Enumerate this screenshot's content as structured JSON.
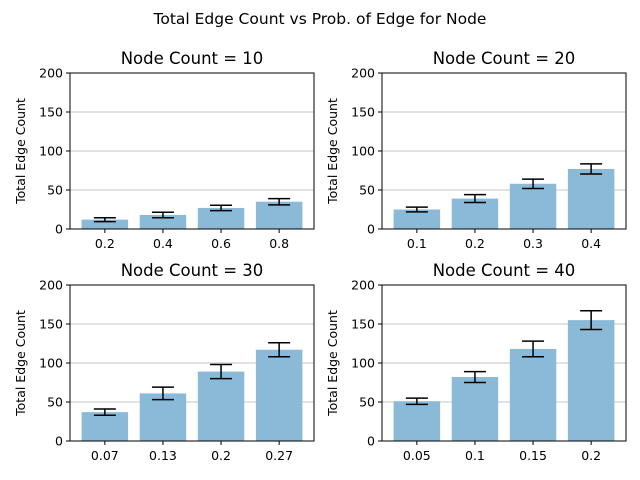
{
  "figure_title": "Total Edge Count vs Prob. of Edge for Node",
  "colors": {
    "bar": "#8bbad9",
    "error": "#000000",
    "grid": "#b0b0b0"
  },
  "chart_data": [
    {
      "type": "bar",
      "title": "Node Count = 10",
      "ylabel": "Total Edge Count",
      "ylim": [
        0,
        200
      ],
      "yticks": [
        0,
        50,
        100,
        150,
        200
      ],
      "grid": "y",
      "categories": [
        "0.2",
        "0.4",
        "0.6",
        "0.8"
      ],
      "values": [
        12,
        18,
        27,
        35
      ],
      "errors": [
        2.5,
        3.5,
        3.5,
        4
      ]
    },
    {
      "type": "bar",
      "title": "Node Count = 20",
      "ylabel": "Total Edge Count",
      "ylim": [
        0,
        200
      ],
      "yticks": [
        0,
        50,
        100,
        150,
        200
      ],
      "grid": "y",
      "categories": [
        "0.1",
        "0.2",
        "0.3",
        "0.4"
      ],
      "values": [
        25,
        39,
        58,
        77
      ],
      "errors": [
        3,
        5,
        6,
        6.5
      ]
    },
    {
      "type": "bar",
      "title": "Node Count = 30",
      "ylabel": "Total Edge Count",
      "ylim": [
        0,
        200
      ],
      "yticks": [
        0,
        50,
        100,
        150,
        200
      ],
      "grid": "y",
      "categories": [
        "0.07",
        "0.13",
        "0.2",
        "0.27"
      ],
      "values": [
        37,
        61,
        89,
        117
      ],
      "errors": [
        4,
        8,
        9,
        9
      ]
    },
    {
      "type": "bar",
      "title": "Node Count = 40",
      "ylabel": "Total Edge Count",
      "ylim": [
        0,
        200
      ],
      "yticks": [
        0,
        50,
        100,
        150,
        200
      ],
      "grid": "y",
      "categories": [
        "0.05",
        "0.1",
        "0.15",
        "0.2"
      ],
      "values": [
        51,
        82,
        118,
        155
      ],
      "errors": [
        4,
        7,
        10,
        12
      ]
    }
  ]
}
